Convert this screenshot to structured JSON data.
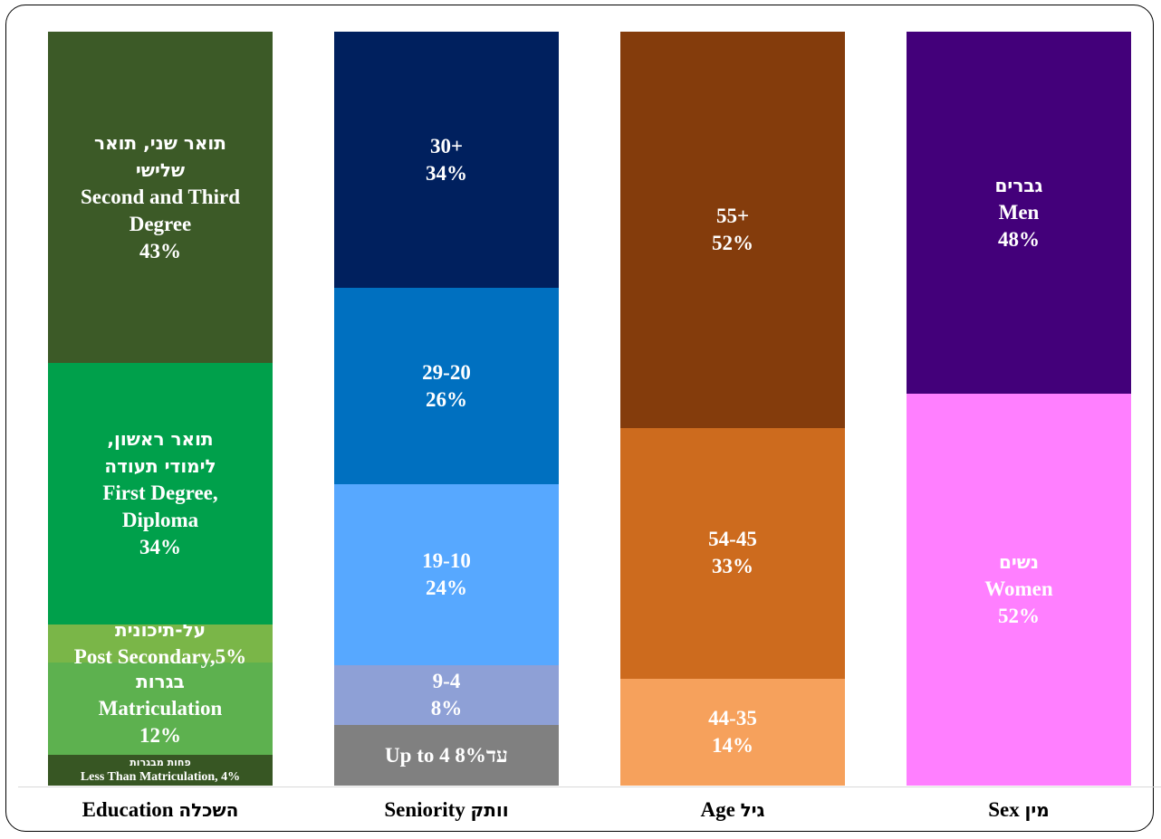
{
  "chart_data": {
    "type": "bar",
    "stacked": true,
    "percent_stacked": true,
    "categories": [
      {
        "en": "Education",
        "he": "השכלה"
      },
      {
        "en": "Seniority",
        "he": "וותק"
      },
      {
        "en": "Age",
        "he": "גיל"
      },
      {
        "en": "Sex",
        "he": "מין"
      }
    ],
    "bars": [
      {
        "category": "Education",
        "segments": [
          {
            "value": 4,
            "color": "#375623",
            "size": "small",
            "lines": [
              {
                "t": "פחות מבגרות",
                "heb": true
              },
              {
                "t": "Less Than Matriculation, 4%"
              }
            ]
          },
          {
            "value": 12,
            "color": "#5db14f",
            "lines": [
              {
                "t": "בגרות",
                "heb": true
              },
              {
                "t": "Matriculation"
              },
              {
                "t": "12%"
              }
            ]
          },
          {
            "value": 5,
            "color": "#7ab648",
            "lines": [
              {
                "t": "על-תיכונית",
                "heb": true
              },
              {
                "t": "Post Secondary,5%"
              }
            ]
          },
          {
            "value": 34,
            "color": "#00a04b",
            "lines": [
              {
                "t": "תואר ראשון,",
                "heb": true
              },
              {
                "t": "לימודי תעודה",
                "heb": true
              },
              {
                "t": "First Degree,"
              },
              {
                "t": "Diploma"
              },
              {
                "t": "34%"
              }
            ]
          },
          {
            "value": 43,
            "color": "#3c5a27",
            "lines": [
              {
                "t": "תואר שני, תואר",
                "heb": true
              },
              {
                "t": "שלישי",
                "heb": true
              },
              {
                "t": "Second and Third"
              },
              {
                "t": "Degree"
              },
              {
                "t": "43%"
              }
            ]
          }
        ]
      },
      {
        "category": "Seniority",
        "segments": [
          {
            "value": 8,
            "color": "#808080",
            "lines": [
              {
                "t": "Up to 4  עד8%"
              }
            ]
          },
          {
            "value": 8,
            "color": "#8ea0d6",
            "lines": [
              {
                "t": "9-4"
              },
              {
                "t": "8%"
              }
            ]
          },
          {
            "value": 24,
            "color": "#57a8ff",
            "lines": [
              {
                "t": "19-10"
              },
              {
                "t": "24%"
              }
            ]
          },
          {
            "value": 26,
            "color": "#0070c0",
            "lines": [
              {
                "t": "29-20"
              },
              {
                "t": "26%"
              }
            ]
          },
          {
            "value": 34,
            "color": "#00205e",
            "lines": [
              {
                "t": "30+"
              },
              {
                "t": "34%"
              }
            ]
          }
        ]
      },
      {
        "category": "Age",
        "segments": [
          {
            "value": 14,
            "color": "#f6a15c",
            "lines": [
              {
                "t": "44-35"
              },
              {
                "t": "14%"
              }
            ]
          },
          {
            "value": 33,
            "color": "#cd6b1e",
            "lines": [
              {
                "t": "54-45"
              },
              {
                "t": "33%"
              }
            ]
          },
          {
            "value": 52,
            "color": "#843c0c",
            "lines": [
              {
                "t": "55+"
              },
              {
                "t": "52%"
              }
            ]
          }
        ]
      },
      {
        "category": "Sex",
        "segments": [
          {
            "value": 52,
            "color": "#ff7fff",
            "lines": [
              {
                "t": "נשים",
                "heb": true
              },
              {
                "t": "Women"
              },
              {
                "t": "52%"
              }
            ]
          },
          {
            "value": 48,
            "color": "#43007a",
            "lines": [
              {
                "t": "גברים",
                "heb": true
              },
              {
                "t": "Men"
              },
              {
                "t": "48%"
              }
            ]
          }
        ]
      }
    ],
    "ylim": [
      0,
      100
    ],
    "legend": "none",
    "grid": false
  }
}
